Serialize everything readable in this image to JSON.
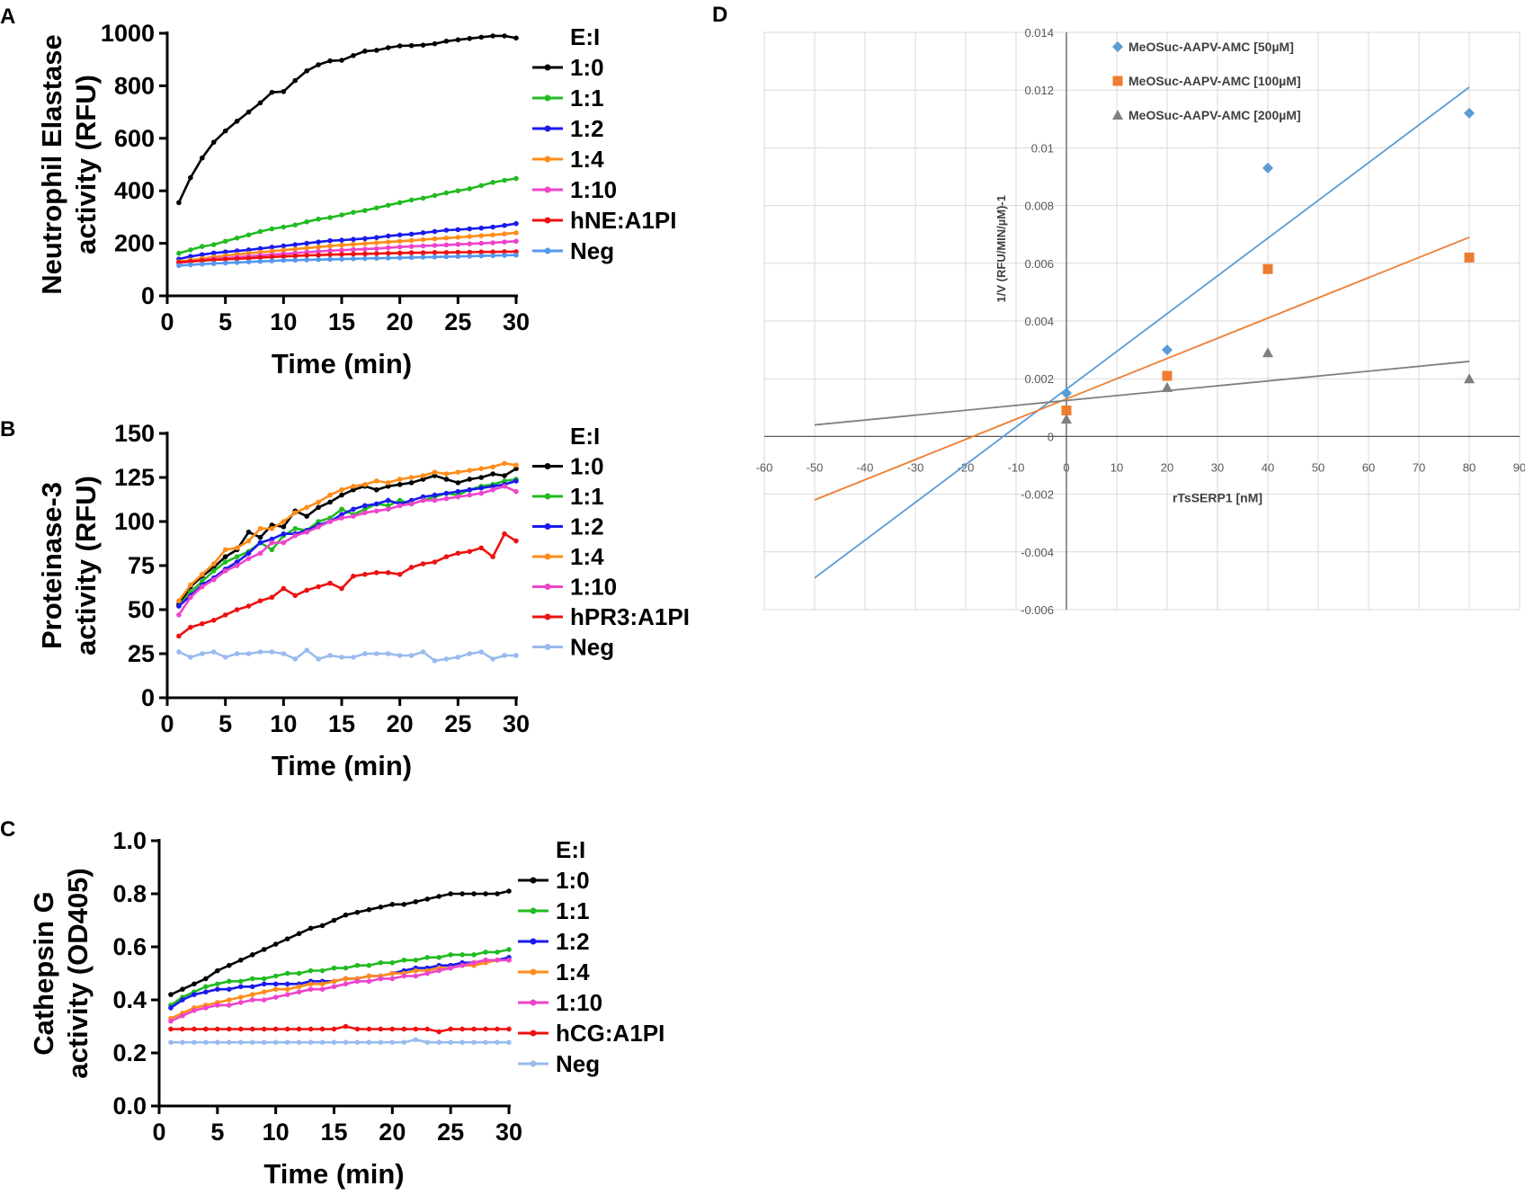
{
  "chart_data": [
    {
      "panel": "A",
      "type": "line",
      "ylabel_lines": [
        "Neutrophil Elastase",
        "activity (RFU)"
      ],
      "xlabel": "Time (min)",
      "xlim": [
        0,
        30
      ],
      "ylim": [
        0,
        1000
      ],
      "xticks": [
        0,
        5,
        10,
        15,
        20,
        25,
        30
      ],
      "yticks": [
        0,
        200,
        400,
        600,
        800,
        1000
      ],
      "legend_title": "E:I",
      "series": [
        {
          "name": "1:0",
          "color": "#000000",
          "values": [
            355,
            450,
            525,
            585,
            628,
            665,
            700,
            735,
            775,
            778,
            820,
            857,
            880,
            895,
            897,
            915,
            932,
            935,
            945,
            952,
            953,
            955,
            960,
            970,
            975,
            980,
            985,
            990,
            990,
            982
          ]
        },
        {
          "name": "1:1",
          "color": "#22bb22",
          "values": [
            162,
            175,
            188,
            195,
            208,
            220,
            232,
            245,
            255,
            262,
            270,
            282,
            292,
            298,
            308,
            318,
            325,
            335,
            345,
            355,
            365,
            372,
            382,
            392,
            400,
            408,
            420,
            432,
            440,
            447
          ]
        },
        {
          "name": "1:2",
          "color": "#1a1aee",
          "values": [
            140,
            150,
            157,
            163,
            167,
            171,
            175,
            180,
            185,
            190,
            195,
            200,
            205,
            210,
            212,
            215,
            218,
            222,
            228,
            232,
            235,
            240,
            245,
            250,
            252,
            255,
            258,
            262,
            268,
            275
          ]
        },
        {
          "name": "1:4",
          "color": "#ff8c1a",
          "values": [
            130,
            136,
            142,
            148,
            153,
            158,
            162,
            166,
            170,
            174,
            178,
            182,
            186,
            190,
            193,
            196,
            199,
            202,
            205,
            208,
            211,
            214,
            217,
            220,
            223,
            226,
            229,
            232,
            236,
            240
          ]
        },
        {
          "name": "1:10",
          "color": "#ee44cc",
          "values": [
            125,
            130,
            135,
            140,
            143,
            147,
            150,
            154,
            157,
            160,
            163,
            166,
            169,
            172,
            174,
            176,
            178,
            180,
            183,
            186,
            188,
            190,
            192,
            194,
            196,
            198,
            200,
            202,
            205,
            208
          ]
        },
        {
          "name": "hNE:A1PI",
          "color": "#ee1111",
          "values": [
            128,
            131,
            134,
            137,
            139,
            141,
            143,
            146,
            148,
            150,
            152,
            154,
            155,
            157,
            158,
            159,
            160,
            161,
            162,
            163,
            164,
            164,
            165,
            165,
            166,
            166,
            167,
            167,
            168,
            168
          ]
        },
        {
          "name": "Neg",
          "color": "#5599ee",
          "values": [
            115,
            118,
            121,
            123,
            125,
            127,
            129,
            131,
            133,
            135,
            136,
            137,
            138,
            139,
            140,
            141,
            142,
            143,
            144,
            145,
            146,
            147,
            148,
            149,
            150,
            151,
            152,
            153,
            154,
            155
          ]
        }
      ]
    },
    {
      "panel": "B",
      "type": "line",
      "ylabel_lines": [
        "Proteinase-3",
        "activity (RFU)"
      ],
      "xlabel": "Time (min)",
      "xlim": [
        0,
        30
      ],
      "ylim": [
        0,
        150
      ],
      "xticks": [
        0,
        5,
        10,
        15,
        20,
        25,
        30
      ],
      "yticks": [
        0,
        25,
        50,
        75,
        100,
        125,
        150
      ],
      "legend_title": "E:I",
      "series": [
        {
          "name": "1:0",
          "color": "#000000",
          "values": [
            53,
            63,
            69,
            74,
            80,
            84,
            94,
            91,
            98,
            97,
            106,
            103,
            108,
            111,
            115,
            118,
            120,
            118,
            120,
            121,
            122,
            124,
            126,
            124,
            122,
            124,
            125,
            127,
            126,
            130
          ]
        },
        {
          "name": "1:1",
          "color": "#22bb22",
          "values": [
            52,
            60,
            66,
            72,
            77,
            80,
            83,
            88,
            84,
            92,
            96,
            95,
            100,
            102,
            107,
            104,
            107,
            110,
            109,
            112,
            110,
            112,
            114,
            116,
            115,
            118,
            120,
            121,
            123,
            124
          ]
        },
        {
          "name": "1:2",
          "color": "#1a1aee",
          "values": [
            52,
            58,
            64,
            68,
            73,
            77,
            82,
            88,
            90,
            93,
            93,
            95,
            98,
            100,
            104,
            107,
            109,
            110,
            112,
            110,
            112,
            114,
            115,
            116,
            117,
            118,
            119,
            120,
            121,
            123
          ]
        },
        {
          "name": "1:4",
          "color": "#ff8c1a",
          "values": [
            55,
            64,
            70,
            76,
            84,
            85,
            89,
            96,
            96,
            100,
            105,
            108,
            111,
            115,
            118,
            120,
            121,
            123,
            122,
            124,
            125,
            126,
            128,
            127,
            128,
            129,
            130,
            131,
            133,
            132
          ]
        },
        {
          "name": "1:10",
          "color": "#ee44cc",
          "values": [
            47,
            57,
            63,
            67,
            72,
            75,
            79,
            82,
            88,
            88,
            92,
            94,
            97,
            100,
            102,
            103,
            105,
            106,
            107,
            109,
            110,
            112,
            112,
            113,
            114,
            115,
            116,
            118,
            120,
            117
          ]
        },
        {
          "name": "hPR3:A1PI",
          "color": "#ee1111",
          "values": [
            35,
            40,
            42,
            44,
            47,
            50,
            52,
            55,
            57,
            62,
            58,
            61,
            63,
            65,
            62,
            69,
            70,
            71,
            71,
            70,
            74,
            76,
            77,
            80,
            82,
            83,
            85,
            80,
            93,
            89
          ]
        },
        {
          "name": "Neg",
          "color": "#99bbee",
          "values": [
            26,
            23,
            25,
            26,
            23,
            25,
            25,
            26,
            26,
            25,
            22,
            27,
            22,
            24,
            23,
            23,
            25,
            25,
            25,
            24,
            24,
            26,
            21,
            22,
            23,
            25,
            26,
            22,
            24,
            24
          ]
        }
      ]
    },
    {
      "panel": "C",
      "type": "line",
      "ylabel_lines": [
        "Cathepsin G",
        "activity (OD405)"
      ],
      "xlabel": "Time (min)",
      "xlim": [
        0,
        30
      ],
      "ylim": [
        0,
        1.0
      ],
      "xticks": [
        0,
        5,
        10,
        15,
        20,
        25,
        30
      ],
      "yticks": [
        0.0,
        0.2,
        0.4,
        0.6,
        0.8,
        1.0
      ],
      "ytick_labels": [
        "0.0",
        "0.2",
        "0.4",
        "0.6",
        "0.8",
        "1.0"
      ],
      "legend_title": "E:I",
      "series": [
        {
          "name": "1:0",
          "color": "#000000",
          "values": [
            0.42,
            0.44,
            0.46,
            0.48,
            0.51,
            0.53,
            0.55,
            0.57,
            0.59,
            0.61,
            0.63,
            0.65,
            0.67,
            0.68,
            0.7,
            0.72,
            0.73,
            0.74,
            0.75,
            0.76,
            0.76,
            0.77,
            0.78,
            0.79,
            0.8,
            0.8,
            0.8,
            0.8,
            0.8,
            0.81
          ]
        },
        {
          "name": "1:1",
          "color": "#22bb22",
          "values": [
            0.38,
            0.41,
            0.43,
            0.45,
            0.46,
            0.47,
            0.47,
            0.48,
            0.48,
            0.49,
            0.5,
            0.5,
            0.51,
            0.51,
            0.52,
            0.52,
            0.53,
            0.53,
            0.54,
            0.54,
            0.55,
            0.55,
            0.56,
            0.56,
            0.57,
            0.57,
            0.57,
            0.58,
            0.58,
            0.59
          ]
        },
        {
          "name": "1:2",
          "color": "#1a1aee",
          "values": [
            0.37,
            0.4,
            0.42,
            0.43,
            0.44,
            0.44,
            0.45,
            0.45,
            0.46,
            0.46,
            0.46,
            0.46,
            0.47,
            0.47,
            0.47,
            0.48,
            0.48,
            0.49,
            0.49,
            0.5,
            0.51,
            0.52,
            0.52,
            0.53,
            0.53,
            0.54,
            0.54,
            0.55,
            0.55,
            0.56
          ]
        },
        {
          "name": "1:4",
          "color": "#ff8c1a",
          "values": [
            0.33,
            0.35,
            0.37,
            0.38,
            0.39,
            0.4,
            0.41,
            0.42,
            0.43,
            0.44,
            0.44,
            0.45,
            0.46,
            0.46,
            0.47,
            0.48,
            0.48,
            0.49,
            0.49,
            0.5,
            0.5,
            0.51,
            0.51,
            0.52,
            0.52,
            0.53,
            0.53,
            0.54,
            0.55,
            0.55
          ]
        },
        {
          "name": "1:10",
          "color": "#ee44cc",
          "values": [
            0.32,
            0.34,
            0.36,
            0.37,
            0.38,
            0.38,
            0.39,
            0.4,
            0.4,
            0.41,
            0.42,
            0.43,
            0.44,
            0.44,
            0.45,
            0.46,
            0.47,
            0.47,
            0.48,
            0.48,
            0.49,
            0.49,
            0.5,
            0.51,
            0.52,
            0.53,
            0.54,
            0.55,
            0.55,
            0.55
          ]
        },
        {
          "name": "hCG:A1PI",
          "color": "#ee1111",
          "values": [
            0.29,
            0.29,
            0.29,
            0.29,
            0.29,
            0.29,
            0.29,
            0.29,
            0.29,
            0.29,
            0.29,
            0.29,
            0.29,
            0.29,
            0.29,
            0.3,
            0.29,
            0.29,
            0.29,
            0.29,
            0.29,
            0.29,
            0.29,
            0.28,
            0.29,
            0.29,
            0.29,
            0.29,
            0.29,
            0.29
          ]
        },
        {
          "name": "Neg",
          "color": "#99bbee",
          "values": [
            0.24,
            0.24,
            0.24,
            0.24,
            0.24,
            0.24,
            0.24,
            0.24,
            0.24,
            0.24,
            0.24,
            0.24,
            0.24,
            0.24,
            0.24,
            0.24,
            0.24,
            0.24,
            0.24,
            0.24,
            0.24,
            0.25,
            0.24,
            0.24,
            0.24,
            0.24,
            0.24,
            0.24,
            0.24,
            0.24
          ]
        }
      ]
    },
    {
      "panel": "D",
      "type": "scatter",
      "xlabel": "rTsSERP1 [nM]",
      "ylabel": "1/V (RFU/MIN/µM)-1",
      "xlim": [
        -60,
        90
      ],
      "ylim": [
        -0.006,
        0.014
      ],
      "xticks": [
        -60,
        -50,
        -40,
        -30,
        -20,
        -10,
        0,
        10,
        20,
        30,
        40,
        50,
        60,
        70,
        80,
        90
      ],
      "yticks": [
        -0.006,
        -0.004,
        -0.002,
        0,
        0.002,
        0.004,
        0.006,
        0.008,
        0.01,
        0.012,
        0.014
      ],
      "ytick_labels": [
        "-0.006",
        "-0.004",
        "-0.002",
        "0",
        "0.002",
        "0.004",
        "0.006",
        "0.008",
        "0.01",
        "0.012",
        "0.014"
      ],
      "grid": true,
      "legend_position": "top-left",
      "series": [
        {
          "name": "MeOSuc-AAPV-AMC [50µM]",
          "marker": "diamond",
          "color": "#5b9bd5",
          "x": [
            0,
            20,
            40,
            80
          ],
          "y": [
            0.0015,
            0.003,
            0.0093,
            0.0112
          ],
          "fit": {
            "x": [
              -50,
              80
            ],
            "y": [
              -0.0049,
              0.0121
            ]
          }
        },
        {
          "name": "MeOSuc-AAPV-AMC [100µM]",
          "marker": "square",
          "color": "#ed7d31",
          "x": [
            0,
            20,
            40,
            80
          ],
          "y": [
            0.0009,
            0.0021,
            0.0058,
            0.0062
          ],
          "fit": {
            "x": [
              -50,
              80
            ],
            "y": [
              -0.0022,
              0.0069
            ]
          }
        },
        {
          "name": "MeOSuc-AAPV-AMC [200µM]",
          "marker": "triangle",
          "color": "#7f7f7f",
          "x": [
            0,
            20,
            40,
            80
          ],
          "y": [
            0.0006,
            0.0017,
            0.0029,
            0.002
          ],
          "fit": {
            "x": [
              -50,
              80
            ],
            "y": [
              0.0004,
              0.0026
            ]
          }
        }
      ]
    }
  ]
}
